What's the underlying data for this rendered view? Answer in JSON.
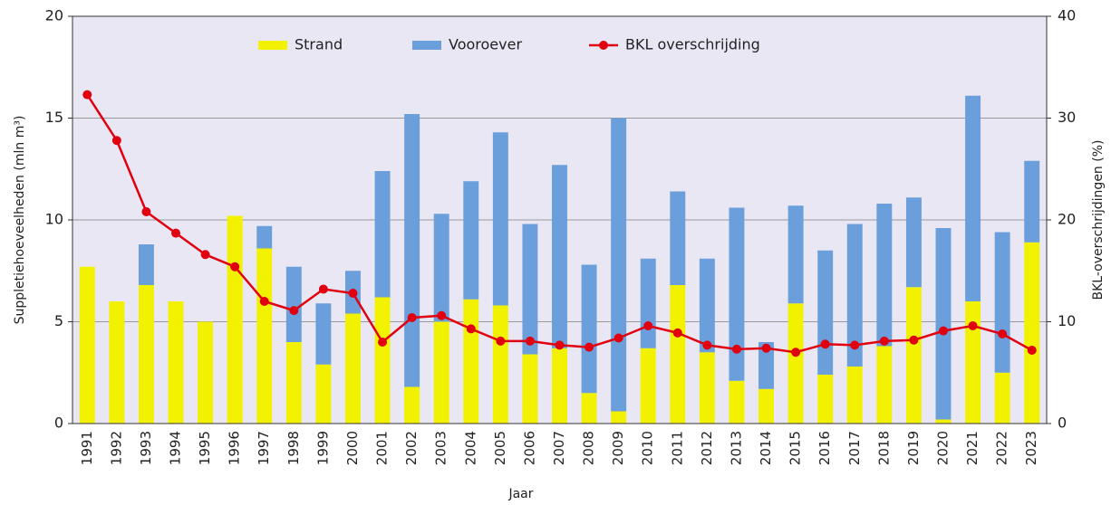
{
  "chart_data": {
    "type": "bar_line",
    "xlabel": "Jaar",
    "ylabel": "Suppletiehoeveelheden (mln m³)",
    "y2label": "BKL-overschrijdingen (%)",
    "categories": [
      "1991",
      "1992",
      "1993",
      "1994",
      "1995",
      "1996",
      "1997",
      "1998",
      "1999",
      "2000",
      "2001",
      "2002",
      "2003",
      "2004",
      "2005",
      "2006",
      "2007",
      "2008",
      "2009",
      "2010",
      "2011",
      "2012",
      "2013",
      "2014",
      "2015",
      "2016",
      "2017",
      "2018",
      "2019",
      "2020",
      "2021",
      "2022",
      "2023"
    ],
    "series": [
      {
        "name": "Strand",
        "color": "#f2f200",
        "type": "bar",
        "values": [
          7.7,
          6.0,
          6.8,
          6.0,
          5.0,
          10.2,
          8.6,
          4.0,
          2.9,
          5.4,
          6.2,
          1.8,
          5.0,
          6.1,
          5.8,
          3.4,
          3.7,
          1.5,
          0.6,
          3.7,
          6.8,
          3.5,
          2.1,
          1.7,
          5.9,
          2.4,
          2.8,
          3.8,
          6.7,
          0.2,
          6.0,
          2.5,
          8.9
        ]
      },
      {
        "name": "Vooroever",
        "color": "#6a9fdc",
        "type": "bar",
        "values": [
          0,
          0,
          2.0,
          0,
          0,
          0,
          1.1,
          3.7,
          3.0,
          2.1,
          6.2,
          13.4,
          5.3,
          5.8,
          8.5,
          6.4,
          9.0,
          6.3,
          14.4,
          4.4,
          4.6,
          4.6,
          8.5,
          2.3,
          4.8,
          6.1,
          7.0,
          7.0,
          4.4,
          9.4,
          10.1,
          6.9,
          4.0
        ]
      },
      {
        "name": "BKL overschrijding",
        "color": "#e0000f",
        "type": "line",
        "axis": "y2",
        "values": [
          32.3,
          27.8,
          20.8,
          18.7,
          16.6,
          15.4,
          12.0,
          11.1,
          13.2,
          12.8,
          8.0,
          10.4,
          10.6,
          9.3,
          8.1,
          8.1,
          7.7,
          7.5,
          8.4,
          9.6,
          8.9,
          7.7,
          7.3,
          7.4,
          7.0,
          7.8,
          7.7,
          8.1,
          8.2,
          9.1,
          9.6,
          8.8,
          7.2
        ]
      }
    ],
    "ylim": [
      0,
      20
    ],
    "yticks": [
      0,
      5,
      10,
      15,
      20
    ],
    "y2lim": [
      0,
      40
    ],
    "y2ticks": [
      0,
      10,
      20,
      30,
      40
    ],
    "grid": true,
    "background": "#e9e7f3",
    "legend": "top"
  }
}
